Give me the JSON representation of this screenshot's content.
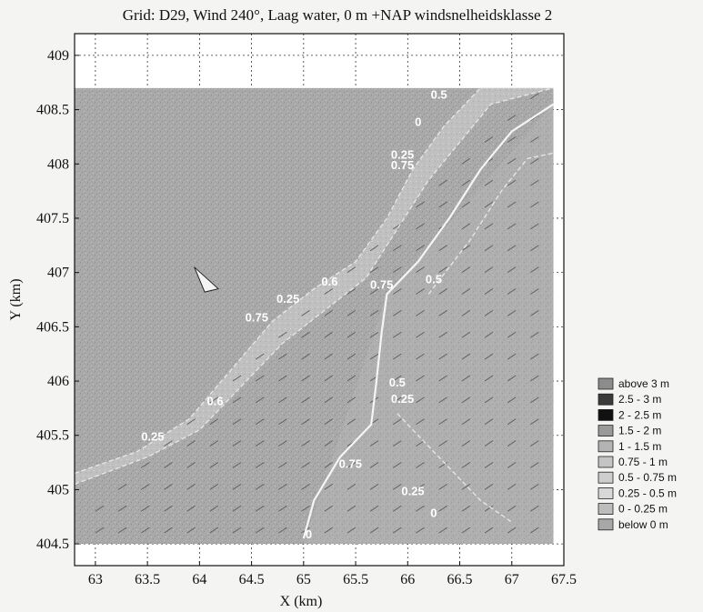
{
  "chart_data": {
    "type": "heatmap",
    "title": "Grid: D29, Wind 240°, Laag water, 0 m +NAP windsnelheidsklasse 2",
    "xlabel": "X (km)",
    "ylabel": "Y (km)",
    "xlim": [
      62.8,
      67.5
    ],
    "ylim": [
      104.3,
      409.2
    ],
    "x_display_range": [
      62.8,
      67.5
    ],
    "y_display_range": [
      404.3,
      409.2
    ],
    "x_ticks": [
      "63",
      "63.5",
      "64",
      "64.5",
      "65",
      "65.5",
      "66",
      "66.5",
      "67",
      "67.5"
    ],
    "y_ticks": [
      "404.5",
      "405",
      "405.5",
      "406",
      "406.5",
      "407",
      "407.5",
      "408",
      "408.5",
      "409"
    ],
    "grid": true,
    "data_extent": {
      "x": [
        62.8,
        67.4
      ],
      "y": [
        404.5,
        408.7
      ]
    },
    "legend_position": "right",
    "legend": [
      {
        "label": "above 3 m",
        "color": "#8c8c8c"
      },
      {
        "label": "2.5 - 3 m",
        "color": "#3a3a3a"
      },
      {
        "label": "2 - 2.5 m",
        "color": "#111111"
      },
      {
        "label": "1.5 - 2 m",
        "color": "#9a9a9a"
      },
      {
        "label": "1 - 1.5 m",
        "color": "#b4b4b4"
      },
      {
        "label": "0.75 - 1 m",
        "color": "#c4c4c4"
      },
      {
        "label": "0.5 - 0.75 m",
        "color": "#cecece"
      },
      {
        "label": "0.25 - 0.5 m",
        "color": "#d8d8d8"
      },
      {
        "label": "0 - 0.25 m",
        "color": "#bdbdbd"
      },
      {
        "label": "below 0 m",
        "color": "#a8a8a8"
      }
    ],
    "contour_labels": [
      {
        "text": "0.5",
        "x": 66.3,
        "y": 408.6
      },
      {
        "text": "0",
        "x": 66.1,
        "y": 408.35
      },
      {
        "text": "0.25",
        "x": 65.95,
        "y": 408.05
      },
      {
        "text": "0.75",
        "x": 65.95,
        "y": 407.95
      },
      {
        "text": "0.6",
        "x": 65.25,
        "y": 406.88
      },
      {
        "text": "0.25",
        "x": 64.85,
        "y": 406.72
      },
      {
        "text": "0.75",
        "x": 65.75,
        "y": 406.85
      },
      {
        "text": "0.5",
        "x": 66.25,
        "y": 406.9
      },
      {
        "text": "0.75",
        "x": 64.55,
        "y": 406.55
      },
      {
        "text": "0.5",
        "x": 65.9,
        "y": 405.95
      },
      {
        "text": "0.25",
        "x": 65.95,
        "y": 405.8
      },
      {
        "text": "0.6",
        "x": 64.15,
        "y": 405.78
      },
      {
        "text": "0.25",
        "x": 63.55,
        "y": 405.45
      },
      {
        "text": "0.75",
        "x": 65.45,
        "y": 405.2
      },
      {
        "text": "0.25",
        "x": 66.05,
        "y": 404.95
      },
      {
        "text": "0",
        "x": 66.25,
        "y": 404.75
      },
      {
        "text": "0",
        "x": 65.05,
        "y": 404.55
      }
    ],
    "contour_lines": [
      {
        "label": "channel edge north",
        "points": [
          [
            62.8,
            405.15
          ],
          [
            63.4,
            405.35
          ],
          [
            63.9,
            405.65
          ],
          [
            64.3,
            406.1
          ],
          [
            64.7,
            406.55
          ],
          [
            65.1,
            406.85
          ],
          [
            65.5,
            407.1
          ],
          [
            65.8,
            407.5
          ],
          [
            66.05,
            407.95
          ],
          [
            66.35,
            408.35
          ],
          [
            66.7,
            408.7
          ]
        ]
      },
      {
        "label": "channel edge south",
        "points": [
          [
            62.8,
            405.05
          ],
          [
            63.5,
            405.3
          ],
          [
            64.0,
            405.55
          ],
          [
            64.4,
            405.95
          ],
          [
            64.8,
            406.35
          ],
          [
            65.2,
            406.65
          ],
          [
            65.6,
            406.95
          ],
          [
            65.9,
            407.4
          ],
          [
            66.2,
            407.85
          ],
          [
            66.5,
            408.2
          ],
          [
            66.8,
            408.55
          ],
          [
            67.4,
            408.7
          ]
        ]
      },
      {
        "label": "white line river",
        "points": [
          [
            65.0,
            404.55
          ],
          [
            65.1,
            404.9
          ],
          [
            65.35,
            405.3
          ],
          [
            65.65,
            405.6
          ],
          [
            65.7,
            406.0
          ],
          [
            65.75,
            406.45
          ],
          [
            65.8,
            406.8
          ],
          [
            66.1,
            407.1
          ],
          [
            66.4,
            407.5
          ],
          [
            66.7,
            407.95
          ],
          [
            67.0,
            408.3
          ],
          [
            67.4,
            408.55
          ]
        ]
      },
      {
        "label": "east edge",
        "points": [
          [
            66.2,
            406.8
          ],
          [
            66.6,
            407.3
          ],
          [
            66.9,
            407.75
          ],
          [
            67.15,
            408.05
          ],
          [
            67.4,
            408.1
          ]
        ]
      },
      {
        "label": "south east",
        "points": [
          [
            65.9,
            405.7
          ],
          [
            66.3,
            405.3
          ],
          [
            66.7,
            404.9
          ],
          [
            67.0,
            404.7
          ]
        ]
      }
    ]
  }
}
